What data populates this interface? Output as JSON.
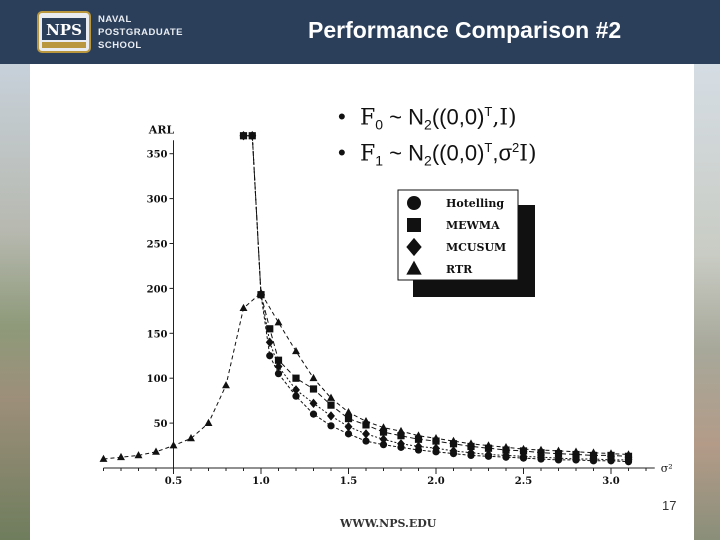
{
  "header": {
    "title": "Performance Comparison #2",
    "logo_lines": [
      "NAVAL",
      "POSTGRADUATE",
      "SCHOOL"
    ],
    "logo_badge": "NPS"
  },
  "bullets": [
    {
      "dist": "F",
      "sub": "0",
      "formula": " ~ N",
      "nsub": "2",
      "args": "((0,0)",
      "sup": "T",
      "tail": ",I)"
    },
    {
      "dist": "F",
      "sub": "1",
      "formula": " ~ N",
      "nsub": "2",
      "args": "((0,0)",
      "sup": "T",
      "tail": ",σ",
      "sup2": "2",
      "tail2": "I)"
    }
  ],
  "footer": {
    "url": "WWW.NPS.EDU",
    "page": "17"
  },
  "chart_data": {
    "type": "line",
    "ylabel": "ARL",
    "xlabel": "σ²",
    "xlim": [
      0.0,
      3.25
    ],
    "ylim": [
      0,
      375
    ],
    "xticks": [
      0.5,
      1.0,
      1.5,
      2.0,
      2.5,
      3.0
    ],
    "yticks": [
      50,
      100,
      150,
      200,
      250,
      300,
      350
    ],
    "xtick_labels": [
      "0.5",
      "1.0",
      "1.5",
      "2.0",
      "2.5",
      "3.0"
    ],
    "ytick_labels": [
      "50",
      "100",
      "150",
      "200",
      "250",
      "300",
      "350"
    ],
    "legend": [
      "Hotelling",
      "MEWMA",
      "MCUSUM",
      "RTR"
    ],
    "series": [
      {
        "name": "Hotelling",
        "marker": "circle",
        "points": [
          [
            0.9,
            370
          ],
          [
            0.95,
            370
          ],
          [
            1.0,
            193
          ],
          [
            1.05,
            125
          ],
          [
            1.1,
            105
          ],
          [
            1.2,
            80
          ],
          [
            1.3,
            60
          ],
          [
            1.4,
            47
          ],
          [
            1.5,
            38
          ],
          [
            1.6,
            30
          ],
          [
            1.7,
            26
          ],
          [
            1.8,
            23
          ],
          [
            1.9,
            20
          ],
          [
            2.0,
            18
          ],
          [
            2.1,
            16
          ],
          [
            2.2,
            14
          ],
          [
            2.3,
            13
          ],
          [
            2.4,
            12
          ],
          [
            2.5,
            11
          ],
          [
            2.6,
            10
          ],
          [
            2.7,
            9
          ],
          [
            2.8,
            9
          ],
          [
            2.9,
            8
          ],
          [
            3.0,
            8
          ],
          [
            3.1,
            7
          ]
        ]
      },
      {
        "name": "MEWMA",
        "marker": "square",
        "points": [
          [
            0.9,
            370
          ],
          [
            0.95,
            370
          ],
          [
            1.0,
            193
          ],
          [
            1.05,
            155
          ],
          [
            1.1,
            120
          ],
          [
            1.2,
            100
          ],
          [
            1.3,
            88
          ],
          [
            1.4,
            70
          ],
          [
            1.5,
            55
          ],
          [
            1.6,
            48
          ],
          [
            1.7,
            40
          ],
          [
            1.8,
            36
          ],
          [
            1.9,
            32
          ],
          [
            2.0,
            30
          ],
          [
            2.1,
            27
          ],
          [
            2.2,
            24
          ],
          [
            2.3,
            22
          ],
          [
            2.4,
            20
          ],
          [
            2.5,
            19
          ],
          [
            2.6,
            17
          ],
          [
            2.7,
            16
          ],
          [
            2.8,
            15
          ],
          [
            2.9,
            14
          ],
          [
            3.0,
            14
          ],
          [
            3.1,
            13
          ]
        ]
      },
      {
        "name": "MCUSUM",
        "marker": "diamond",
        "points": [
          [
            0.9,
            370
          ],
          [
            0.95,
            370
          ],
          [
            1.0,
            193
          ],
          [
            1.05,
            140
          ],
          [
            1.1,
            113
          ],
          [
            1.2,
            87
          ],
          [
            1.3,
            72
          ],
          [
            1.4,
            58
          ],
          [
            1.5,
            46
          ],
          [
            1.6,
            38
          ],
          [
            1.7,
            32
          ],
          [
            1.8,
            27
          ],
          [
            1.9,
            24
          ],
          [
            2.0,
            22
          ],
          [
            2.1,
            19
          ],
          [
            2.2,
            17
          ],
          [
            2.3,
            15
          ],
          [
            2.4,
            14
          ],
          [
            2.5,
            13
          ],
          [
            2.6,
            12
          ],
          [
            2.7,
            11
          ],
          [
            2.8,
            10
          ],
          [
            2.9,
            10
          ],
          [
            3.0,
            9
          ],
          [
            3.1,
            9
          ]
        ]
      },
      {
        "name": "RTR",
        "marker": "triangle",
        "points": [
          [
            0.1,
            10
          ],
          [
            0.2,
            12
          ],
          [
            0.3,
            14
          ],
          [
            0.4,
            18
          ],
          [
            0.5,
            25
          ],
          [
            0.6,
            33
          ],
          [
            0.7,
            50
          ],
          [
            0.8,
            92
          ],
          [
            0.9,
            178
          ],
          [
            1.0,
            195
          ],
          [
            1.1,
            162
          ],
          [
            1.2,
            130
          ],
          [
            1.3,
            100
          ],
          [
            1.4,
            78
          ],
          [
            1.5,
            62
          ],
          [
            1.6,
            52
          ],
          [
            1.7,
            45
          ],
          [
            1.8,
            41
          ],
          [
            1.9,
            36
          ],
          [
            2.0,
            33
          ],
          [
            2.1,
            30
          ],
          [
            2.2,
            27
          ],
          [
            2.3,
            25
          ],
          [
            2.4,
            23
          ],
          [
            2.5,
            21
          ],
          [
            2.6,
            20
          ],
          [
            2.7,
            19
          ],
          [
            2.8,
            18
          ],
          [
            2.9,
            17
          ],
          [
            3.0,
            16
          ],
          [
            3.1,
            15
          ]
        ]
      }
    ]
  },
  "colors": {
    "header_bg": "#2b3f5b",
    "series": "#111111"
  }
}
